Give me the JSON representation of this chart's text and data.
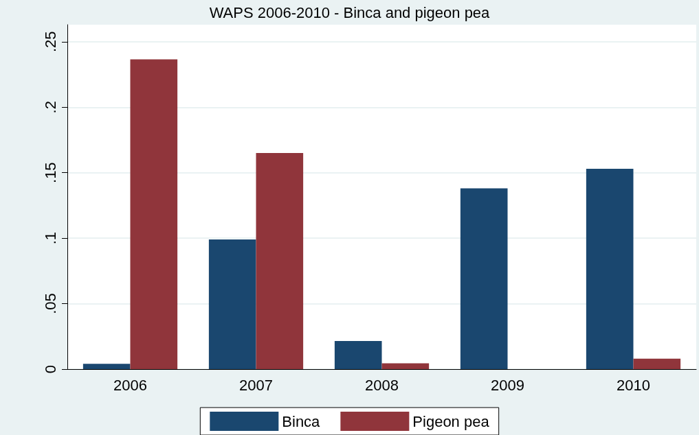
{
  "chart_data": {
    "type": "bar",
    "title": "WAPS 2006-2010 - Binca and pigeon pea",
    "categories": [
      "2006",
      "2007",
      "2008",
      "2009",
      "2010"
    ],
    "series": [
      {
        "name": "Binca",
        "color": "#1a476f",
        "values": [
          0.004,
          0.099,
          0.0215,
          0.138,
          0.153
        ]
      },
      {
        "name": "Pigeon pea",
        "color": "#90353b",
        "values": [
          0.2365,
          0.165,
          0.0045,
          0,
          0.008
        ]
      }
    ],
    "ylim": [
      0,
      0.263
    ],
    "yticks": [
      {
        "value": 0,
        "label": "0"
      },
      {
        "value": 0.05,
        "label": ".05"
      },
      {
        "value": 0.1,
        "label": ".1"
      },
      {
        "value": 0.15,
        "label": ".15"
      },
      {
        "value": 0.2,
        "label": ".2"
      },
      {
        "value": 0.25,
        "label": ".25"
      }
    ],
    "grid": "y",
    "legend": "bottom"
  }
}
